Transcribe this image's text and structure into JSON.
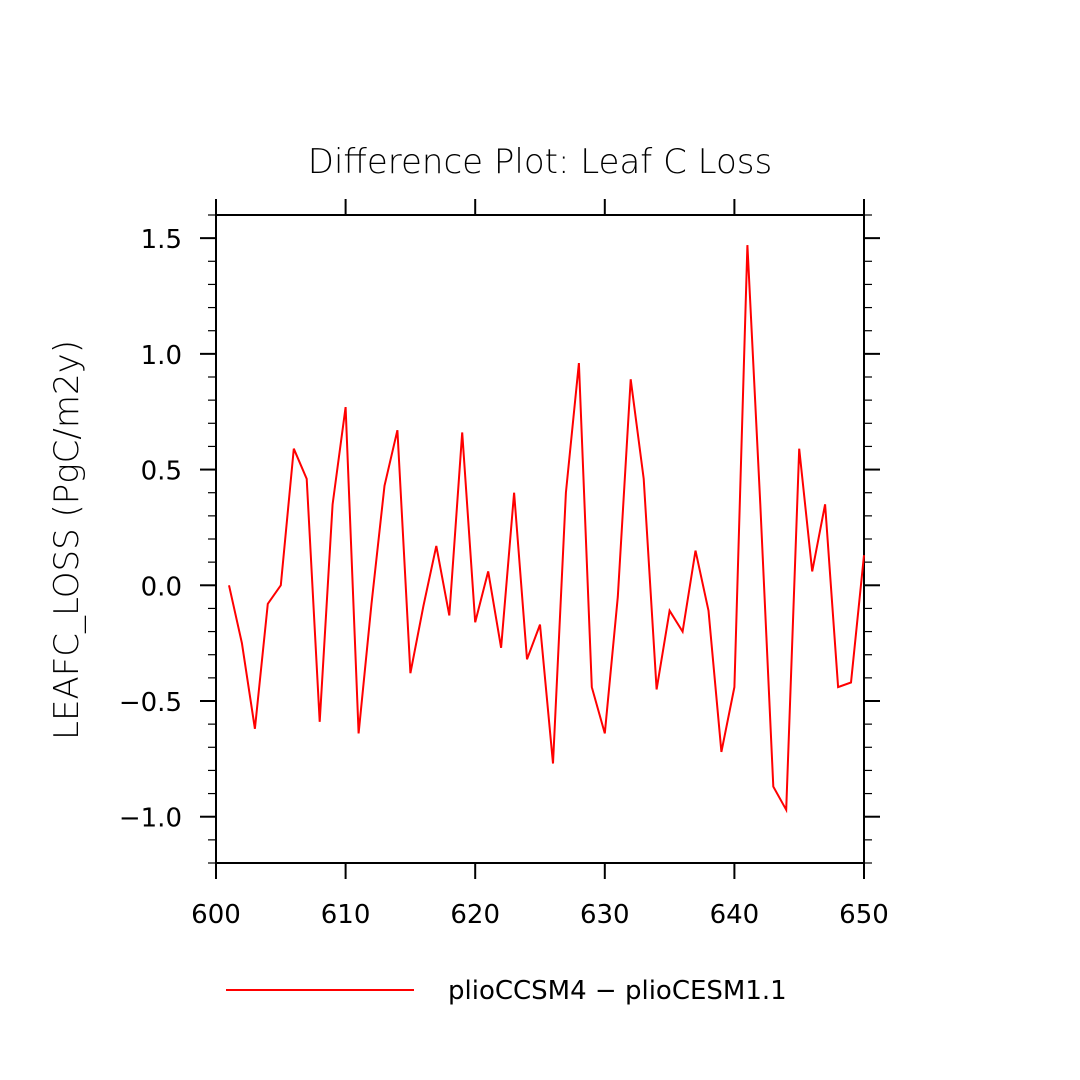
{
  "chart_data": {
    "type": "line",
    "title": "Difference Plot: Leaf C Loss",
    "xlabel": "",
    "ylabel": "LEAFC_LOSS   (PgC/m2y)",
    "xlim": [
      600,
      650
    ],
    "ylim": [
      -1.2,
      1.6
    ],
    "x_ticks": [
      600,
      610,
      620,
      630,
      640,
      650
    ],
    "x_tick_labels": [
      "600",
      "610",
      "620",
      "630",
      "640",
      "650"
    ],
    "y_ticks": [
      -1.0,
      -0.5,
      0.0,
      0.5,
      1.0,
      1.5
    ],
    "y_tick_labels": [
      "−1.0",
      "−0.5",
      "0.0",
      "0.5",
      "1.0",
      "1.5"
    ],
    "grid": false,
    "legend_position": "bottom",
    "series": [
      {
        "name": "plioCCSM4 − plioCESM1.1",
        "color": "#ff0000",
        "x": [
          601,
          602,
          603,
          604,
          605,
          606,
          607,
          608,
          609,
          610,
          611,
          612,
          613,
          614,
          615,
          616,
          617,
          618,
          619,
          620,
          621,
          622,
          623,
          624,
          625,
          626,
          627,
          628,
          629,
          630,
          631,
          632,
          633,
          634,
          635,
          636,
          637,
          638,
          639,
          640,
          641,
          642,
          643,
          644,
          645,
          646,
          647,
          648,
          649,
          650
        ],
        "y": [
          0.0,
          -0.25,
          -0.62,
          -0.08,
          0.0,
          0.59,
          0.46,
          -0.59,
          0.35,
          0.77,
          -0.64,
          -0.08,
          0.43,
          0.67,
          -0.38,
          -0.09,
          0.17,
          -0.13,
          0.66,
          -0.16,
          0.06,
          -0.27,
          0.4,
          -0.32,
          -0.17,
          -0.77,
          0.4,
          0.96,
          -0.44,
          -0.64,
          -0.05,
          0.89,
          0.46,
          -0.45,
          -0.11,
          -0.2,
          0.15,
          -0.11,
          -0.72,
          -0.44,
          1.47,
          0.35,
          -0.87,
          -0.97,
          0.59,
          0.06,
          0.35,
          -0.44,
          -0.42,
          0.13
        ]
      }
    ]
  }
}
